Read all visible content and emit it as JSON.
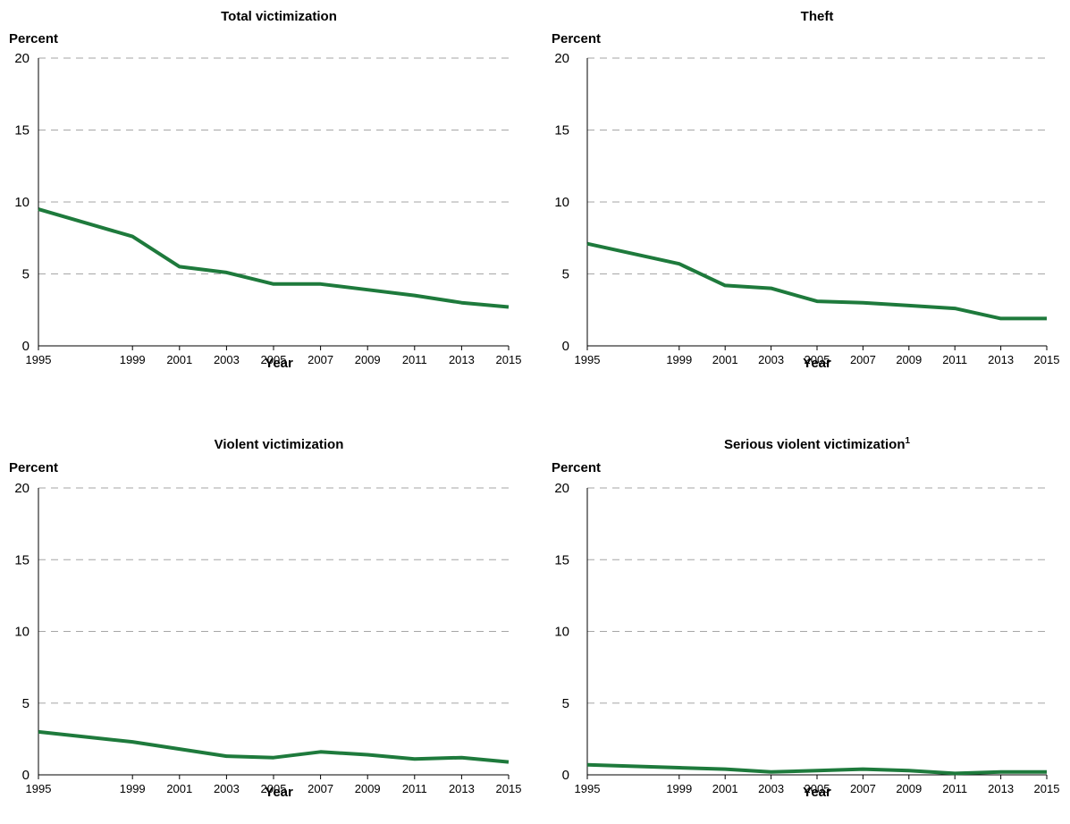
{
  "chart_data": [
    {
      "type": "line",
      "title": "Total victimization",
      "ylabel": "Percent",
      "xlabel": "Year",
      "ylim": [
        0,
        20
      ],
      "yticks": [
        0,
        5,
        10,
        15,
        20
      ],
      "xlim": [
        1995,
        2015
      ],
      "xticks": [
        1995,
        1999,
        2001,
        2003,
        2005,
        2007,
        2009,
        2011,
        2013,
        2015
      ],
      "grid": "horizontal dashed",
      "series": [
        {
          "x": [
            1995,
            1999,
            2001,
            2003,
            2005,
            2007,
            2009,
            2011,
            2013,
            2015
          ],
          "values": [
            9.5,
            7.6,
            5.5,
            5.1,
            4.3,
            4.3,
            3.9,
            3.5,
            3.0,
            2.7
          ]
        }
      ]
    },
    {
      "type": "line",
      "title": "Theft",
      "ylabel": "Percent",
      "xlabel": "Year",
      "ylim": [
        0,
        20
      ],
      "yticks": [
        0,
        5,
        10,
        15,
        20
      ],
      "xlim": [
        1995,
        2015
      ],
      "xticks": [
        1995,
        1999,
        2001,
        2003,
        2005,
        2007,
        2009,
        2011,
        2013,
        2015
      ],
      "grid": "horizontal dashed",
      "series": [
        {
          "x": [
            1995,
            1999,
            2001,
            2003,
            2005,
            2007,
            2009,
            2011,
            2013,
            2015
          ],
          "values": [
            7.1,
            5.7,
            4.2,
            4.0,
            3.1,
            3.0,
            2.8,
            2.6,
            1.9,
            1.9
          ]
        }
      ]
    },
    {
      "type": "line",
      "title": "Violent victimization",
      "ylabel": "Percent",
      "xlabel": "Year",
      "ylim": [
        0,
        20
      ],
      "yticks": [
        0,
        5,
        10,
        15,
        20
      ],
      "xlim": [
        1995,
        2015
      ],
      "xticks": [
        1995,
        1999,
        2001,
        2003,
        2005,
        2007,
        2009,
        2011,
        2013,
        2015
      ],
      "grid": "horizontal dashed",
      "series": [
        {
          "x": [
            1995,
            1999,
            2001,
            2003,
            2005,
            2007,
            2009,
            2011,
            2013,
            2015
          ],
          "values": [
            3.0,
            2.3,
            1.8,
            1.3,
            1.2,
            1.6,
            1.4,
            1.1,
            1.2,
            0.9
          ]
        }
      ]
    },
    {
      "type": "line",
      "title": "Serious violent victimization",
      "title_superscript": "1",
      "ylabel": "Percent",
      "xlabel": "Year",
      "ylim": [
        0,
        20
      ],
      "yticks": [
        0,
        5,
        10,
        15,
        20
      ],
      "xlim": [
        1995,
        2015
      ],
      "xticks": [
        1995,
        1999,
        2001,
        2003,
        2005,
        2007,
        2009,
        2011,
        2013,
        2015
      ],
      "grid": "horizontal dashed",
      "series": [
        {
          "x": [
            1995,
            1999,
            2001,
            2003,
            2005,
            2007,
            2009,
            2011,
            2013,
            2015
          ],
          "values": [
            0.7,
            0.5,
            0.4,
            0.2,
            0.3,
            0.4,
            0.3,
            0.1,
            0.2,
            0.2
          ]
        }
      ]
    }
  ],
  "colors": {
    "series": "#1e7a3c",
    "grid": "#a6a6a6",
    "axis": "#000000"
  }
}
